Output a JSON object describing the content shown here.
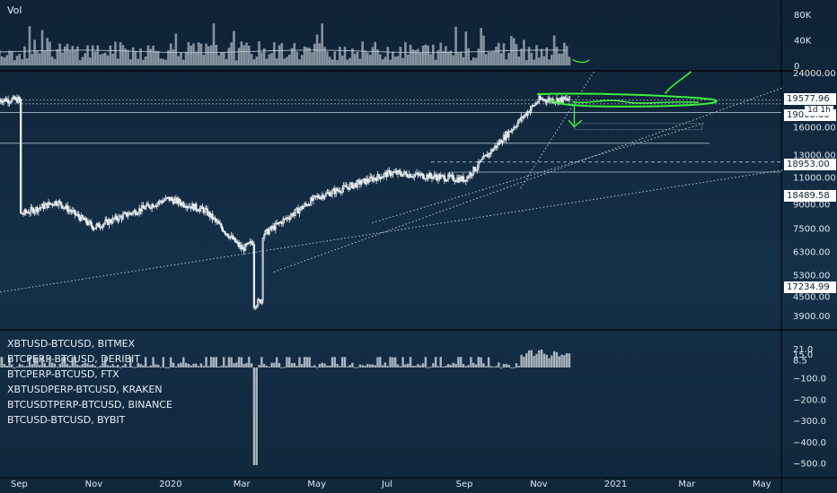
{
  "volume_label": "Vol",
  "interval": "1d 1h",
  "colors": {
    "background": "#10243a",
    "candle": "#e8ecef",
    "drawing_green": "#3cf23c",
    "grid": "#c8d2dc",
    "text": "#dfe6ee"
  },
  "chart_data": {
    "type": "candlestick",
    "xlabel": "",
    "ylabel": "",
    "x_ticks": [
      "Sep",
      "Nov",
      "2020",
      "Mar",
      "May",
      "Jul",
      "Sep",
      "Nov",
      "2021",
      "Mar",
      "May"
    ],
    "price_axis": {
      "scale": "log",
      "ticks": [
        24000,
        16000,
        13000,
        11000,
        9000,
        7500,
        6300,
        5300,
        4500,
        3900
      ],
      "tick_labels": [
        "24000.00",
        "16000.00",
        "13000.00",
        "11000.00",
        "9000.00",
        "7500.00",
        "6300.00",
        "5300.00",
        "4500.00",
        "3900.00"
      ],
      "price_tags": [
        "19577.96",
        "19000.00",
        "18953.00",
        "18489.58",
        "17234.99"
      ]
    },
    "volume_axis": {
      "ticks": [
        80000,
        40000,
        0
      ],
      "tick_labels": [
        "80K",
        "40K",
        "0"
      ]
    },
    "lower_axis": {
      "ticks": [
        21.0,
        15.0,
        8.5,
        -100,
        -200,
        -300,
        -400,
        -500
      ],
      "tick_labels": [
        "21.0",
        "15.0",
        "8.5",
        "−100.0",
        "−200.0",
        "−300.0",
        "−400.0",
        "−500.0"
      ]
    },
    "lower_legend": [
      "XBTUSD-BTCUSD, BITMEX",
      "BTCPERP-BTCUSD, DERIBIT",
      "BTCPERP-BTCUSD, FTX",
      "XBTUSDPERP-BTCUSD, KRAKEN",
      "BTCUSDTPERP-BTCUSD, BINANCE",
      "BTCUSD-BTCUSD, BYBIT"
    ],
    "monthly_close": [
      {
        "month": "2019-09",
        "close": 8300
      },
      {
        "month": "2019-10",
        "close": 9150
      },
      {
        "month": "2019-11",
        "close": 7550
      },
      {
        "month": "2020-01",
        "close": 9350
      },
      {
        "month": "2020-02",
        "close": 8550
      },
      {
        "month": "2020-03",
        "close": 6400
      },
      {
        "month": "2020-05",
        "close": 9450
      },
      {
        "month": "2020-07",
        "close": 11350
      },
      {
        "month": "2020-09",
        "close": 10800
      },
      {
        "month": "2020-11",
        "close": 19600
      }
    ]
  }
}
